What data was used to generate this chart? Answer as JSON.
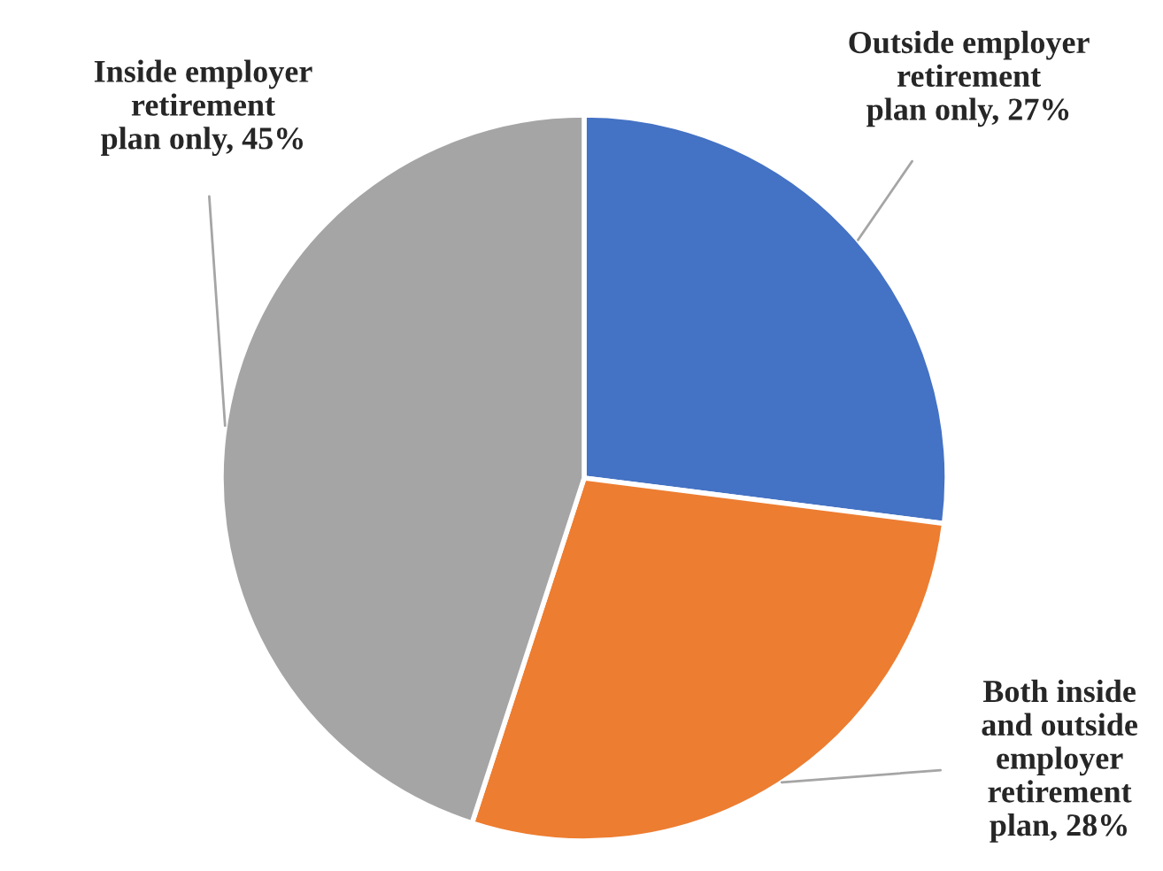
{
  "chart_data": {
    "type": "pie",
    "categories": [
      "Outside employer\nretirement\nplan only",
      "Both inside\nand outside\nemployer\nretirement\nplan",
      "Inside employer\nretirement\nplan only"
    ],
    "values": [
      27,
      28,
      45
    ],
    "value_labels": [
      "27%",
      "28%",
      "45%"
    ],
    "colors": [
      "#4472c4",
      "#ed7d31",
      "#a5a5a5"
    ],
    "legend": false
  }
}
